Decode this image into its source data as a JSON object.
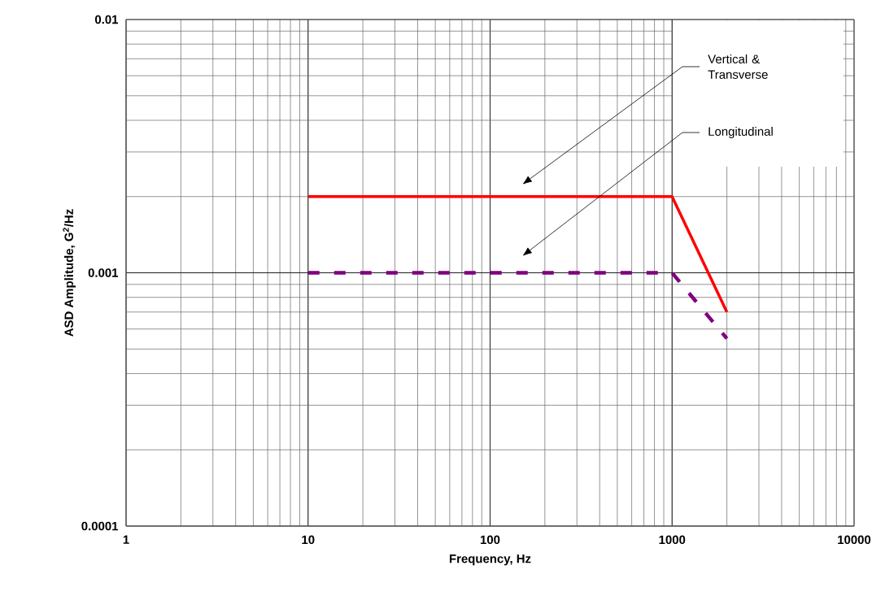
{
  "chart_data": {
    "type": "line",
    "xlabel": "Frequency, Hz",
    "ylabel": "ASD Amplitude, G$^{2}$/Hz",
    "series": [
      {
        "color": "#ff0000",
        "x": [
          10,
          1000,
          2000
        ],
        "values": [
          0.002,
          0.002,
          0.0007
        ],
        "line_style": "solid"
      },
      {
        "color": "#800080",
        "x": [
          10,
          1000,
          2000
        ],
        "values": [
          0.001,
          0.001,
          0.00055
        ],
        "line_style": "dashed"
      }
    ],
    "annotations": [
      "Vertical & Transverse",
      "Longitudinal"
    ],
    "log": "xy",
    "grid": true,
    "marker": "none",
    "xlim": [
      1,
      10000
    ],
    "ylim": [
      0.0001,
      0.01
    ],
    "xticks": [
      1,
      10,
      100,
      1000,
      10000
    ],
    "yticks": [
      0.0001,
      0.001,
      0.01
    ]
  }
}
